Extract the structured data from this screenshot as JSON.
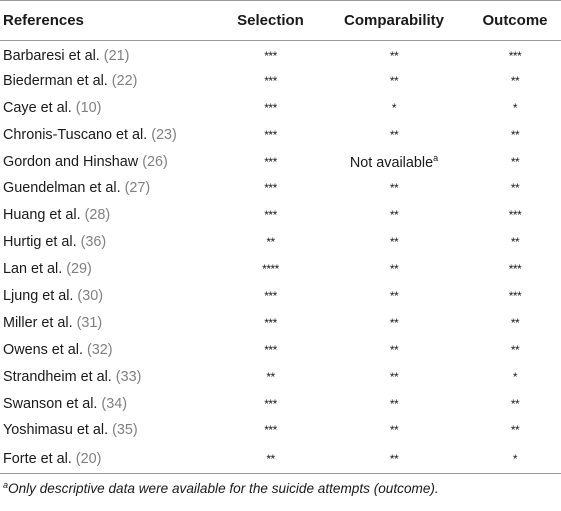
{
  "headers": {
    "references": "References",
    "selection": "Selection",
    "comparability": "Comparability",
    "outcome": "Outcome"
  },
  "rows": [
    {
      "author": "Barbaresi et al.",
      "cite": "(21)",
      "selection": "***",
      "comparability": "**",
      "outcome": "***"
    },
    {
      "author": "Biederman et al.",
      "cite": "(22)",
      "selection": "***",
      "comparability": "**",
      "outcome": "**"
    },
    {
      "author": "Caye et al.",
      "cite": "(10)",
      "selection": "***",
      "comparability": "*",
      "outcome": "*"
    },
    {
      "author": "Chronis-Tuscano et al.",
      "cite": "(23)",
      "selection": "***",
      "comparability": "**",
      "outcome": "**"
    },
    {
      "author": "Gordon and Hinshaw",
      "cite": "(26)",
      "selection": "***",
      "comparability": "Not available",
      "comparability_sup": "a",
      "outcome": "**"
    },
    {
      "author": "Guendelman et al.",
      "cite": "(27)",
      "selection": "***",
      "comparability": "**",
      "outcome": "**"
    },
    {
      "author": "Huang et al.",
      "cite": "(28)",
      "selection": "***",
      "comparability": "**",
      "outcome": "***"
    },
    {
      "author": "Hurtig et al.",
      "cite": "(36)",
      "selection": "**",
      "comparability": "**",
      "outcome": "**"
    },
    {
      "author": "Lan et al.",
      "cite": "(29)",
      "selection": "****",
      "comparability": "**",
      "outcome": "***"
    },
    {
      "author": "Ljung et al.",
      "cite": "(30)",
      "selection": "***",
      "comparability": "**",
      "outcome": "***"
    },
    {
      "author": "Miller et al.",
      "cite": "(31)",
      "selection": "***",
      "comparability": "**",
      "outcome": "**"
    },
    {
      "author": "Owens et al.",
      "cite": "(32)",
      "selection": "***",
      "comparability": "**",
      "outcome": "**"
    },
    {
      "author": "Strandheim et al.",
      "cite": "(33)",
      "selection": "**",
      "comparability": "**",
      "outcome": "*"
    },
    {
      "author": "Swanson et al.",
      "cite": "(34)",
      "selection": "***",
      "comparability": "**",
      "outcome": "**"
    },
    {
      "author": "Yoshimasu et al.",
      "cite": "(35)",
      "selection": "***",
      "comparability": "**",
      "outcome": "**"
    },
    {
      "author": "Forte et al.",
      "cite": "(20)",
      "selection": "**",
      "comparability": "**",
      "outcome": "*"
    }
  ],
  "footnote": {
    "marker": "a",
    "text": "Only descriptive data were available for the suicide attempts (outcome)."
  }
}
